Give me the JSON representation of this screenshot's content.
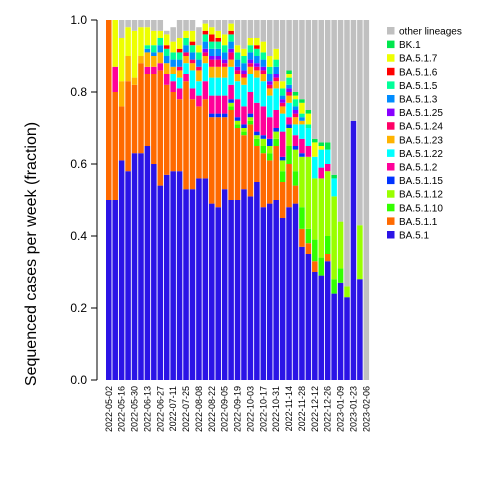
{
  "chart_data": {
    "type": "bar",
    "stacked": true,
    "ylabel": "Sequenced cases per week (fraction)",
    "xlabel": "",
    "ylim": [
      0,
      1
    ],
    "yticks": [
      "0.0",
      "0.2",
      "0.4",
      "0.6",
      "0.8",
      "1.0"
    ],
    "xtick_labels": [
      "2022-05-02",
      "2022-05-16",
      "2022-05-30",
      "2022-06-13",
      "2022-06-27",
      "2022-07-11",
      "2022-07-25",
      "2022-08-08",
      "2022-08-22",
      "2022-09-05",
      "2022-09-19",
      "2022-10-03",
      "2022-10-17",
      "2022-10-31",
      "2022-11-14",
      "2022-11-28",
      "2022-12-12",
      "2022-12-26",
      "2023-01-09",
      "2023-01-23",
      "2023-02-06"
    ],
    "weeks": [
      "2022-05-02",
      "2022-05-09",
      "2022-05-16",
      "2022-05-23",
      "2022-05-30",
      "2022-06-06",
      "2022-06-13",
      "2022-06-20",
      "2022-06-27",
      "2022-07-04",
      "2022-07-11",
      "2022-07-18",
      "2022-07-25",
      "2022-08-01",
      "2022-08-08",
      "2022-08-15",
      "2022-08-22",
      "2022-08-29",
      "2022-09-05",
      "2022-09-12",
      "2022-09-19",
      "2022-09-26",
      "2022-10-03",
      "2022-10-10",
      "2022-10-17",
      "2022-10-24",
      "2022-10-31",
      "2022-11-07",
      "2022-11-14",
      "2022-11-21",
      "2022-11-28",
      "2022-12-05",
      "2022-12-12",
      "2022-12-19",
      "2022-12-26",
      "2023-01-02",
      "2023-01-09",
      "2023-01-16",
      "2023-01-23",
      "2023-01-30",
      "2023-02-06"
    ],
    "legend_position": "right",
    "series": [
      {
        "name": "BA.5.1",
        "color": "#2b14e6",
        "values": [
          0.5,
          0.5,
          0.61,
          0.58,
          0.63,
          0.63,
          0.65,
          0.6,
          0.54,
          0.57,
          0.58,
          0.58,
          0.53,
          0.53,
          0.56,
          0.56,
          0.49,
          0.48,
          0.53,
          0.5,
          0.5,
          0.53,
          0.51,
          0.55,
          0.48,
          0.49,
          0.5,
          0.45,
          0.48,
          0.49,
          0.37,
          0.35,
          0.3,
          0.29,
          0.33,
          0.24,
          0.27,
          0.23,
          0.72,
          0.28,
          0.0
        ]
      },
      {
        "name": "BA.5.1.1",
        "color": "#ff6a00",
        "values": [
          0.5,
          0.3,
          0.15,
          0.25,
          0.19,
          0.25,
          0.2,
          0.25,
          0.32,
          0.25,
          0.22,
          0.2,
          0.3,
          0.25,
          0.2,
          0.22,
          0.24,
          0.25,
          0.2,
          0.25,
          0.2,
          0.15,
          0.2,
          0.1,
          0.15,
          0.12,
          0.15,
          0.1,
          0.12,
          0.05,
          0.05,
          0.03,
          0.03,
          0.0,
          0.02,
          0.0,
          0.0,
          0.0,
          0.0,
          0.0,
          0.0
        ]
      },
      {
        "name": "BA.5.1.10",
        "color": "#33ff00",
        "values": [
          0.0,
          0.0,
          0.0,
          0.0,
          0.0,
          0.0,
          0.0,
          0.0,
          0.0,
          0.0,
          0.0,
          0.0,
          0.0,
          0.0,
          0.0,
          0.0,
          0.0,
          0.0,
          0.0,
          0.01,
          0.01,
          0.01,
          0.01,
          0.02,
          0.02,
          0.02,
          0.02,
          0.03,
          0.05,
          0.04,
          0.06,
          0.04,
          0.06,
          0.05,
          0.05,
          0.04,
          0.04,
          0.0,
          0.0,
          0.0,
          0.0
        ]
      },
      {
        "name": "BA.5.1.12",
        "color": "#99ff00",
        "values": [
          0.0,
          0.0,
          0.0,
          0.0,
          0.0,
          0.0,
          0.0,
          0.0,
          0.0,
          0.0,
          0.0,
          0.0,
          0.0,
          0.0,
          0.0,
          0.0,
          0.0,
          0.0,
          0.0,
          0.01,
          0.01,
          0.01,
          0.01,
          0.01,
          0.02,
          0.02,
          0.02,
          0.03,
          0.05,
          0.06,
          0.14,
          0.2,
          0.17,
          0.22,
          0.18,
          0.23,
          0.13,
          0.03,
          0.0,
          0.15,
          0.0
        ]
      },
      {
        "name": "BA.5.1.15",
        "color": "#0033ff",
        "values": [
          0.0,
          0.0,
          0.0,
          0.0,
          0.0,
          0.0,
          0.0,
          0.0,
          0.0,
          0.0,
          0.0,
          0.0,
          0.0,
          0.0,
          0.0,
          0.0,
          0.01,
          0.01,
          0.01,
          0.01,
          0.01,
          0.01,
          0.01,
          0.01,
          0.01,
          0.02,
          0.01,
          0.01,
          0.01,
          0.01,
          0.01,
          0.0,
          0.0,
          0.0,
          0.0,
          0.0,
          0.0,
          0.0,
          0.0,
          0.0,
          0.0
        ]
      },
      {
        "name": "BA.5.1.2",
        "color": "#ff0099",
        "values": [
          0.0,
          0.07,
          0.0,
          0.0,
          0.0,
          0.0,
          0.02,
          0.02,
          0.02,
          0.03,
          0.03,
          0.03,
          0.02,
          0.03,
          0.03,
          0.05,
          0.05,
          0.05,
          0.05,
          0.04,
          0.05,
          0.05,
          0.06,
          0.08,
          0.08,
          0.06,
          0.05,
          0.07,
          0.02,
          0.03,
          0.04,
          0.03,
          0.0,
          0.03,
          0.02,
          0.0,
          0.0,
          0.0,
          0.0,
          0.0,
          0.0
        ]
      },
      {
        "name": "BA.5.1.22",
        "color": "#00ffff",
        "values": [
          0.0,
          0.0,
          0.0,
          0.0,
          0.0,
          0.0,
          0.0,
          0.0,
          0.0,
          0.0,
          0.02,
          0.03,
          0.03,
          0.05,
          0.04,
          0.05,
          0.05,
          0.05,
          0.05,
          0.05,
          0.05,
          0.06,
          0.05,
          0.07,
          0.07,
          0.06,
          0.06,
          0.05,
          0.04,
          0.03,
          0.04,
          0.05,
          0.06,
          0.05,
          0.04,
          0.05,
          0.0,
          0.0,
          0.0,
          0.0,
          0.0
        ]
      },
      {
        "name": "BA.5.1.23",
        "color": "#ffb300",
        "values": [
          0.0,
          0.0,
          0.07,
          0.07,
          0.02,
          0.02,
          0.04,
          0.03,
          0.03,
          0.03,
          0.02,
          0.02,
          0.02,
          0.02,
          0.03,
          0.02,
          0.03,
          0.03,
          0.03,
          0.02,
          0.02,
          0.02,
          0.02,
          0.02,
          0.02,
          0.02,
          0.02,
          0.02,
          0.02,
          0.02,
          0.01,
          0.0,
          0.0,
          0.0,
          0.0,
          0.0,
          0.0,
          0.0,
          0.0,
          0.0,
          0.0
        ]
      },
      {
        "name": "BA.5.1.24",
        "color": "#ff0066",
        "values": [
          0.0,
          0.0,
          0.0,
          0.0,
          0.0,
          0.0,
          0.0,
          0.0,
          0.0,
          0.0,
          0.0,
          0.01,
          0.01,
          0.01,
          0.01,
          0.01,
          0.02,
          0.02,
          0.01,
          0.02,
          0.01,
          0.01,
          0.01,
          0.01,
          0.01,
          0.01,
          0.01,
          0.01,
          0.01,
          0.01,
          0.0,
          0.0,
          0.0,
          0.0,
          0.0,
          0.0,
          0.0,
          0.0,
          0.0,
          0.0,
          0.0
        ]
      },
      {
        "name": "BA.5.1.25",
        "color": "#8800ff",
        "values": [
          0.0,
          0.0,
          0.0,
          0.0,
          0.0,
          0.0,
          0.0,
          0.0,
          0.0,
          0.0,
          0.0,
          0.0,
          0.0,
          0.0,
          0.0,
          0.01,
          0.01,
          0.01,
          0.01,
          0.01,
          0.01,
          0.01,
          0.01,
          0.01,
          0.01,
          0.01,
          0.01,
          0.01,
          0.01,
          0.01,
          0.0,
          0.0,
          0.0,
          0.0,
          0.0,
          0.0,
          0.0,
          0.0,
          0.0,
          0.0,
          0.0
        ]
      },
      {
        "name": "BA.5.1.3",
        "color": "#008cff",
        "values": [
          0.0,
          0.0,
          0.0,
          0.0,
          0.0,
          0.0,
          0.01,
          0.01,
          0.02,
          0.02,
          0.02,
          0.02,
          0.02,
          0.02,
          0.02,
          0.02,
          0.02,
          0.02,
          0.02,
          0.02,
          0.02,
          0.02,
          0.02,
          0.02,
          0.02,
          0.02,
          0.02,
          0.01,
          0.01,
          0.01,
          0.01,
          0.0,
          0.0,
          0.0,
          0.0,
          0.0,
          0.0,
          0.0,
          0.0,
          0.0,
          0.0
        ]
      },
      {
        "name": "BA.5.1.5",
        "color": "#00ff99",
        "values": [
          0.0,
          0.0,
          0.0,
          0.0,
          0.0,
          0.0,
          0.01,
          0.02,
          0.02,
          0.02,
          0.02,
          0.02,
          0.02,
          0.02,
          0.02,
          0.02,
          0.02,
          0.02,
          0.02,
          0.02,
          0.02,
          0.02,
          0.02,
          0.02,
          0.02,
          0.02,
          0.02,
          0.02,
          0.02,
          0.02,
          0.01,
          0.01,
          0.0,
          0.0,
          0.0,
          0.0,
          0.0,
          0.0,
          0.0,
          0.0,
          0.0
        ]
      },
      {
        "name": "BA.5.1.6",
        "color": "#ff0000",
        "values": [
          0.0,
          0.0,
          0.0,
          0.0,
          0.0,
          0.0,
          0.0,
          0.0,
          0.0,
          0.01,
          0.0,
          0.01,
          0.0,
          0.01,
          0.0,
          0.01,
          0.02,
          0.01,
          0.0,
          0.01,
          0.0,
          0.0,
          0.0,
          0.01,
          0.0,
          0.0,
          0.0,
          0.0,
          0.0,
          0.0,
          0.0,
          0.0,
          0.0,
          0.0,
          0.0,
          0.0,
          0.0,
          0.0,
          0.0,
          0.0,
          0.0
        ]
      },
      {
        "name": "BA.5.1.7",
        "color": "#eeff00",
        "values": [
          0.0,
          0.13,
          0.12,
          0.08,
          0.13,
          0.08,
          0.05,
          0.04,
          0.02,
          0.03,
          0.03,
          0.03,
          0.02,
          0.03,
          0.02,
          0.02,
          0.02,
          0.02,
          0.03,
          0.02,
          0.02,
          0.02,
          0.02,
          0.02,
          0.03,
          0.03,
          0.03,
          0.02,
          0.01,
          0.01,
          0.03,
          0.03,
          0.04,
          0.01,
          0.0,
          0.0,
          0.0,
          0.0,
          0.0,
          0.0,
          0.0
        ]
      },
      {
        "name": "BK.1",
        "color": "#00e64d",
        "values": [
          0.0,
          0.0,
          0.0,
          0.0,
          0.0,
          0.0,
          0.0,
          0.0,
          0.0,
          0.0,
          0.0,
          0.0,
          0.0,
          0.0,
          0.0,
          0.0,
          0.0,
          0.0,
          0.0,
          0.0,
          0.0,
          0.0,
          0.0,
          0.0,
          0.0,
          0.0,
          0.0,
          0.0,
          0.01,
          0.01,
          0.01,
          0.01,
          0.01,
          0.01,
          0.02,
          0.01,
          0.0,
          0.0,
          0.0,
          0.0,
          0.0
        ]
      },
      {
        "name": "other lineages",
        "color": "#c0c0c0",
        "values": [
          0.0,
          0.0,
          0.05,
          0.02,
          0.03,
          0.02,
          0.02,
          0.03,
          0.03,
          0.01,
          0.04,
          0.05,
          0.03,
          0.03,
          0.05,
          0.03,
          0.05,
          0.05,
          0.04,
          0.04,
          0.07,
          0.08,
          0.05,
          0.05,
          0.06,
          0.11,
          0.08,
          0.17,
          0.15,
          0.21,
          0.22,
          0.25,
          0.33,
          0.34,
          0.34,
          0.43,
          0.56,
          0.74,
          0.28,
          0.57,
          1.0
        ]
      }
    ]
  }
}
